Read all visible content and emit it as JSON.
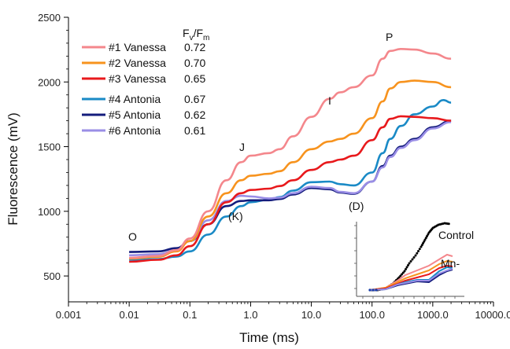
{
  "chart_data": {
    "type": "line",
    "xlabel": "Time (ms)",
    "ylabel": "Fluorescence (mV)",
    "xscale": "log",
    "xlim": [
      0.001,
      10000
    ],
    "ylim": [
      300,
      2500
    ],
    "xticks": [
      "0.001",
      "0.01",
      "0.1",
      "1.0",
      "10.0",
      "100.0",
      "1000.0",
      "10000.0"
    ],
    "xtick_values": [
      0.001,
      0.01,
      0.1,
      1,
      10,
      100,
      1000,
      10000
    ],
    "yticks": [
      500,
      1000,
      1500,
      2000,
      2500
    ],
    "legend": {
      "header_main": "F",
      "header_sub1": "v",
      "header_slash": "/F",
      "header_sub2": "m",
      "placement": "top-left"
    },
    "series": [
      {
        "name": "#1 Vanessa",
        "fvfm": "0.72",
        "color": "#f4878c",
        "x": [
          0.01,
          0.03,
          0.06,
          0.1,
          0.2,
          0.4,
          0.7,
          1,
          2,
          3,
          5,
          10,
          20,
          30,
          50,
          100,
          150,
          200,
          300,
          500,
          1000,
          2000
        ],
        "y": [
          640,
          655,
          700,
          790,
          1000,
          1240,
          1380,
          1430,
          1450,
          1480,
          1580,
          1730,
          1870,
          1920,
          1960,
          2050,
          2180,
          2240,
          2255,
          2250,
          2220,
          2180
        ]
      },
      {
        "name": "#2 Vanessa",
        "fvfm": "0.70",
        "color": "#f7931e",
        "x": [
          0.01,
          0.03,
          0.06,
          0.1,
          0.2,
          0.4,
          0.7,
          1,
          2,
          3,
          5,
          10,
          20,
          30,
          50,
          100,
          150,
          200,
          300,
          500,
          1000,
          2000
        ],
        "y": [
          635,
          648,
          690,
          770,
          960,
          1140,
          1240,
          1275,
          1290,
          1310,
          1380,
          1480,
          1540,
          1560,
          1600,
          1720,
          1850,
          1950,
          2000,
          2010,
          2000,
          1960
        ]
      },
      {
        "name": "#3 Vanessa",
        "fvfm": "0.65",
        "color": "#e8191c",
        "x": [
          0.01,
          0.03,
          0.06,
          0.1,
          0.2,
          0.4,
          0.7,
          1,
          2,
          3,
          5,
          10,
          20,
          30,
          50,
          100,
          150,
          200,
          300,
          500,
          1000,
          2000
        ],
        "y": [
          610,
          625,
          660,
          730,
          900,
          1070,
          1140,
          1165,
          1175,
          1195,
          1240,
          1320,
          1380,
          1400,
          1430,
          1550,
          1650,
          1715,
          1735,
          1730,
          1720,
          1700
        ]
      },
      {
        "name": "#4 Antonia",
        "fvfm": "0.67",
        "color": "#1a8ac6",
        "x": [
          0.01,
          0.03,
          0.06,
          0.1,
          0.2,
          0.4,
          0.7,
          1,
          2,
          3,
          5,
          10,
          20,
          30,
          50,
          100,
          150,
          200,
          300,
          500,
          1000,
          1500,
          2000
        ],
        "y": [
          625,
          630,
          650,
          690,
          820,
          960,
          1040,
          1070,
          1090,
          1110,
          1160,
          1225,
          1230,
          1210,
          1200,
          1300,
          1450,
          1560,
          1660,
          1750,
          1810,
          1860,
          1840
        ]
      },
      {
        "name": "#5 Antonia",
        "fvfm": "0.62",
        "color": "#141c7c",
        "x": [
          0.01,
          0.03,
          0.06,
          0.1,
          0.2,
          0.4,
          0.7,
          1,
          2,
          3,
          5,
          10,
          20,
          30,
          50,
          100,
          150,
          200,
          300,
          500,
          1000,
          2000
        ],
        "y": [
          685,
          690,
          715,
          770,
          900,
          1040,
          1080,
          1085,
          1085,
          1095,
          1130,
          1180,
          1170,
          1145,
          1135,
          1230,
          1350,
          1430,
          1500,
          1560,
          1650,
          1700
        ]
      },
      {
        "name": "#6 Antonia",
        "fvfm": "0.61",
        "color": "#9a8ee6",
        "x": [
          0.01,
          0.03,
          0.06,
          0.1,
          0.2,
          0.4,
          0.7,
          1,
          2,
          3,
          5,
          10,
          20,
          30,
          50,
          100,
          150,
          200,
          300,
          500,
          1000,
          2000
        ],
        "y": [
          660,
          668,
          700,
          770,
          930,
          1080,
          1120,
          1115,
          1100,
          1105,
          1140,
          1190,
          1180,
          1150,
          1140,
          1230,
          1340,
          1420,
          1490,
          1550,
          1640,
          1690
        ]
      }
    ],
    "annotations": [
      "O",
      "J",
      "I",
      "P",
      "(K)",
      "(D)"
    ],
    "inset": {
      "labels": [
        "Control",
        "Mn-"
      ],
      "control_color": "#000000"
    }
  }
}
